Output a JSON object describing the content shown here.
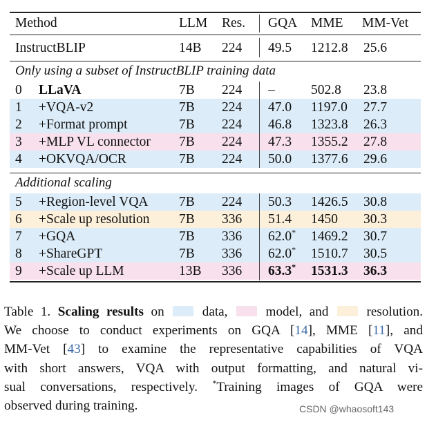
{
  "colors": {
    "data_band": "#dcecf8",
    "model_band": "#f8e1ec",
    "resolution_band": "#fdf0da"
  },
  "table": {
    "headers": {
      "method": "Method",
      "llm": "LLM",
      "res": "Res.",
      "gqa": "GQA",
      "mme": "MME",
      "mmvet": "MM-Vet"
    },
    "baseline": {
      "idx": "",
      "method": "InstructBLIP",
      "llm": "14B",
      "res": "224",
      "gqa": "49.5",
      "mme": "1212.8",
      "mmvet": "25.6"
    },
    "section1_title": "Only using a subset of InstructBLIP training data",
    "section1_rows": [
      {
        "idx": "0",
        "method": "LLaVA",
        "llm": "7B",
        "res": "224",
        "gqa": "–",
        "mme": "502.8",
        "mmvet": "23.8",
        "band": "none"
      },
      {
        "idx": "1",
        "method": "+VQA-v2",
        "llm": "7B",
        "res": "224",
        "gqa": "47.0",
        "mme": "1197.0",
        "mmvet": "27.7",
        "band": "data"
      },
      {
        "idx": "2",
        "method": "+Format prompt",
        "llm": "7B",
        "res": "224",
        "gqa": "46.8",
        "mme": "1323.8",
        "mmvet": "26.3",
        "band": "data"
      },
      {
        "idx": "3",
        "method": "+MLP VL connector",
        "llm": "7B",
        "res": "224",
        "gqa": "47.3",
        "mme": "1355.2",
        "mmvet": "27.8",
        "band": "model"
      },
      {
        "idx": "4",
        "method": "+OKVQA/OCR",
        "llm": "7B",
        "res": "224",
        "gqa": "50.0",
        "mme": "1377.6",
        "mmvet": "29.6",
        "band": "data"
      }
    ],
    "section2_title": "Additional scaling",
    "section2_rows": [
      {
        "idx": "5",
        "method": "+Region-level VQA",
        "llm": "7B",
        "res": "224",
        "gqa": "50.3",
        "mme": "1426.5",
        "mmvet": "30.8",
        "band": "data"
      },
      {
        "idx": "6",
        "method": "+Scale up resolution",
        "llm": "7B",
        "res": "336",
        "gqa": "51.4",
        "mme": "1450",
        "mmvet": "30.3",
        "band": "resolution"
      },
      {
        "idx": "7",
        "method": "+GQA",
        "llm": "7B",
        "res": "336",
        "gqa": "62.0*",
        "mme": "1469.2",
        "mmvet": "30.7",
        "band": "data"
      },
      {
        "idx": "8",
        "method": "+ShareGPT",
        "llm": "7B",
        "res": "336",
        "gqa": "62.0*",
        "mme": "1510.7",
        "mmvet": "30.5",
        "band": "data"
      },
      {
        "idx": "9",
        "method": "+Scale up LLM",
        "llm": "13B",
        "res": "336",
        "gqa": "63.3*",
        "mme": "1531.3",
        "mmvet": "36.3",
        "band": "model"
      }
    ]
  },
  "caption": {
    "label": "Table 1.",
    "bold_phrase": "Scaling results",
    "on": "on",
    "data_word": "data,",
    "model_word": "model, and",
    "resolution_word": "resolution.",
    "line2_a": "We choose to conduct experiments on GQA [",
    "ref_gqa": "14",
    "line2_b": "], MME [",
    "ref_mme": "11",
    "line2_c": "], and",
    "line3_a": "MM-Vet [",
    "ref_mmvet": "43",
    "line3_b": "] to examine the representative capabilities of VQA",
    "line4": "with short answers, VQA with output formatting, and natural vi-",
    "line5_a": "sual conversations, respectively.",
    "footnote_mark": "*",
    "line5_b": "Training images of GQA were",
    "line6": "observed during training."
  },
  "watermark": "CSDN @whaosoft143"
}
